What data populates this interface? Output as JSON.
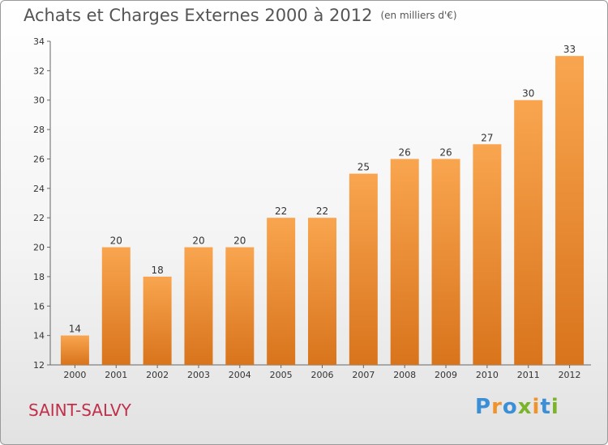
{
  "title": "Achats et Charges Externes 2000 à 2012",
  "unit_note": "(en milliers d'€)",
  "commune": "SAINT-SALVY",
  "logo": {
    "text": "Proxiti",
    "letters": [
      {
        "ch": "P",
        "color": "#3a8fd6"
      },
      {
        "ch": "r",
        "color": "#f0932b"
      },
      {
        "ch": "o",
        "color": "#3a8fd6"
      },
      {
        "ch": "x",
        "color": "#7ab428"
      },
      {
        "ch": "i",
        "color": "#f0932b"
      },
      {
        "ch": "t",
        "color": "#3a8fd6"
      },
      {
        "ch": "i",
        "color": "#7ab428"
      }
    ]
  },
  "chart_data": {
    "type": "bar",
    "title": "Achats et Charges Externes 2000 à 2012",
    "xlabel": "",
    "ylabel": "",
    "categories": [
      "2000",
      "2001",
      "2002",
      "2003",
      "2004",
      "2005",
      "2006",
      "2007",
      "2008",
      "2009",
      "2010",
      "2011",
      "2012"
    ],
    "values": [
      14,
      20,
      18,
      20,
      20,
      22,
      22,
      25,
      26,
      26,
      27,
      30,
      33
    ],
    "ylim": [
      12,
      34
    ],
    "yticks": [
      12,
      14,
      16,
      18,
      20,
      22,
      24,
      26,
      28,
      30,
      32,
      34
    ],
    "grid": false,
    "bar_color_top": "#f9a54f",
    "bar_color_bottom": "#d8741c"
  }
}
